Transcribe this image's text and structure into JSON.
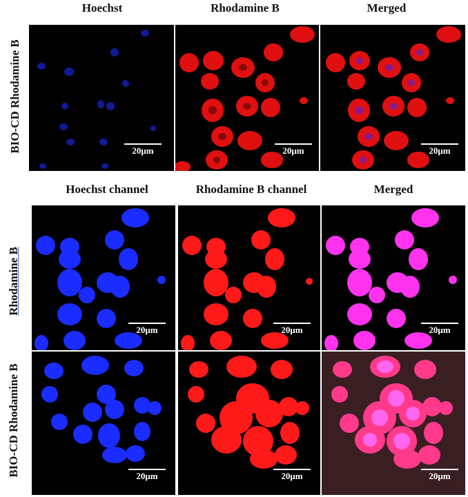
{
  "figure_a": {
    "column_headers": [
      "Hoechst",
      "Rhodamine B",
      "Merged"
    ],
    "row_label": "BIO-CD Rhodamine B",
    "scale_bar": "20μm"
  },
  "figure_b": {
    "column_headers": [
      "Hoechst channel",
      "Rhodamine B channel",
      "Merged"
    ],
    "rows": [
      {
        "label": "Rhodamine B",
        "scale_bar": "20μm"
      },
      {
        "label": "BIO-CD Rhodamine B",
        "scale_bar": "20μm"
      }
    ]
  },
  "colors": {
    "hoechst": "#1a2cff",
    "rhodamine": "#ff1a1a",
    "merged": "#ff33ee",
    "background": "#000000"
  }
}
